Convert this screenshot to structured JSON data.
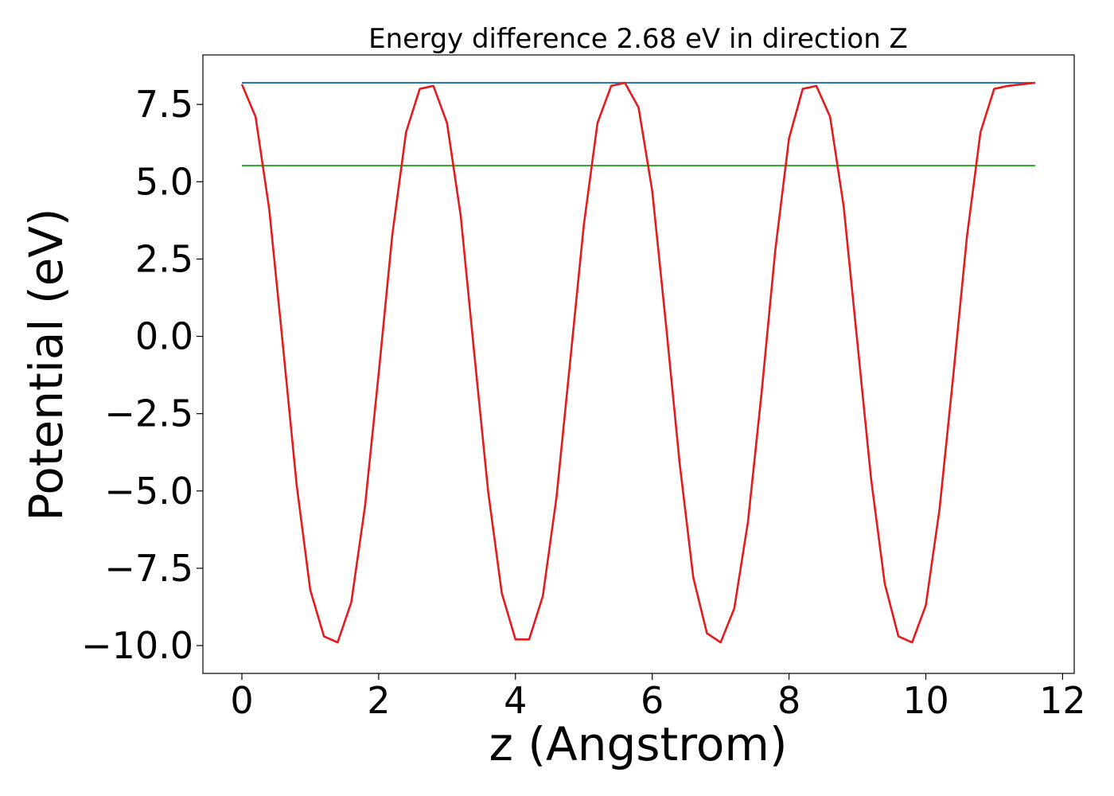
{
  "chart_data": {
    "type": "line",
    "title": "Energy difference 2.68 eV in direction Z",
    "xlabel": "z (Angstrom)",
    "ylabel": "Potential (eV)",
    "xlim": [
      -0.57,
      12.17
    ],
    "ylim": [
      -10.9,
      9.1
    ],
    "xticks": [
      0,
      2,
      4,
      6,
      8,
      10,
      12
    ],
    "xtick_labels": [
      "0",
      "2",
      "4",
      "6",
      "8",
      "10",
      "12"
    ],
    "yticks": [
      -10.0,
      -7.5,
      -5.0,
      -2.5,
      0.0,
      2.5,
      5.0,
      7.5
    ],
    "ytick_labels": [
      "−10.0",
      "−7.5",
      "−5.0",
      "−2.5",
      "0.0",
      "2.5",
      "5.0",
      "7.5"
    ],
    "grid": false,
    "series": [
      {
        "color": "#1f77b4",
        "x": [
          0,
          11.6
        ],
        "y": [
          8.2,
          8.2
        ]
      },
      {
        "color": "#2ca02c",
        "x": [
          0,
          11.6
        ],
        "y": [
          5.52,
          5.52
        ]
      },
      {
        "color": "#e41a1c",
        "x": [
          0,
          0.2,
          0.4,
          0.6,
          0.8,
          1.0,
          1.2,
          1.4,
          1.6,
          1.8,
          2.0,
          2.2,
          2.4,
          2.6,
          2.8,
          3.0,
          3.2,
          3.4,
          3.6,
          3.8,
          4.0,
          4.2,
          4.4,
          4.6,
          4.8,
          5.0,
          5.2,
          5.4,
          5.6,
          5.8,
          6.0,
          6.2,
          6.4,
          6.6,
          6.8,
          7.0,
          7.2,
          7.4,
          7.6,
          7.8,
          8.0,
          8.2,
          8.4,
          8.6,
          8.8,
          9.0,
          9.2,
          9.4,
          9.6,
          9.8,
          10.0,
          10.2,
          10.4,
          10.6,
          10.8,
          11.0,
          11.2,
          11.4,
          11.6
        ],
        "y": [
          8.15,
          7.1,
          4.1,
          -0.3,
          -4.8,
          -8.2,
          -9.7,
          -9.9,
          -8.6,
          -5.5,
          -1.2,
          3.3,
          6.6,
          8.0,
          8.1,
          6.9,
          3.9,
          -0.6,
          -5.0,
          -8.3,
          -9.8,
          -9.8,
          -8.4,
          -5.2,
          -0.8,
          3.6,
          6.9,
          8.1,
          8.2,
          7.4,
          4.7,
          0.4,
          -4.1,
          -7.8,
          -9.6,
          -9.9,
          -8.8,
          -6.0,
          -1.8,
          2.8,
          6.4,
          8.0,
          8.1,
          7.1,
          4.2,
          -0.2,
          -4.6,
          -8.0,
          -9.7,
          -9.9,
          -8.7,
          -5.6,
          -1.3,
          3.2,
          6.6,
          8.0,
          8.1,
          8.15,
          8.2
        ]
      }
    ]
  }
}
